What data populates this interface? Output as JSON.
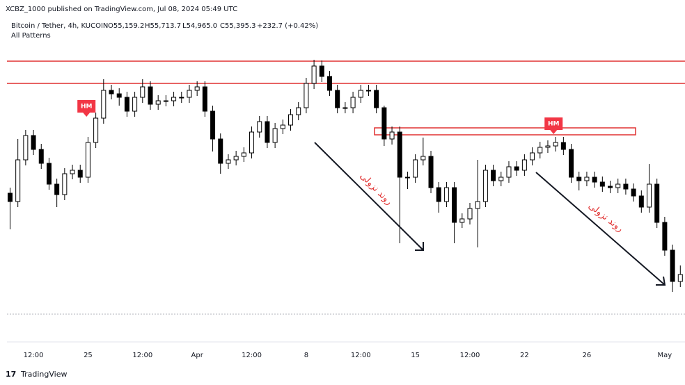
{
  "header": {
    "published": "XCBZ_1000 published on TradingView.com, Jul 08, 2024 05:49 UTC",
    "symbol": "Bitcoin / Tether, 4h, KUCOIN",
    "open": "O55,159.2",
    "high": "H55,713.7",
    "low": "L54,965.0",
    "close": "C55,395.3",
    "change": "+232.7 (+0.42%)",
    "indicator": "All Patterns"
  },
  "footer": {
    "brand": "TradingView"
  },
  "trend_labels": [
    "روند نزولی",
    "روند نزولی"
  ],
  "chart_data": {
    "type": "candlestick",
    "up_color": "#ffffff",
    "down_color": "#000000",
    "wick_color": "#000000",
    "annotations": [
      {
        "text": "HM",
        "x": -0.1,
        "y": 67700
      },
      {
        "text": "HM",
        "x": 29.87,
        "y": 66450
      }
    ],
    "annotation_color": "#f23645",
    "xlim": [
      -5.2,
      38.3
    ],
    "ylim": [
      50800,
      71650
    ],
    "xticks": [
      {
        "value": -3.5,
        "label": "12:00"
      },
      {
        "value": 0,
        "label": "25"
      },
      {
        "value": 3.5,
        "label": "12:00"
      },
      {
        "value": 7,
        "label": "Apr"
      },
      {
        "value": 10.5,
        "label": "12:00"
      },
      {
        "value": 14,
        "label": "8"
      },
      {
        "value": 17.5,
        "label": "12:00"
      },
      {
        "value": 21,
        "label": "15"
      },
      {
        "value": 24.5,
        "label": "12:00"
      },
      {
        "value": 28,
        "label": "22"
      },
      {
        "value": 32,
        "label": "26"
      },
      {
        "value": 37,
        "label": "May"
      }
    ],
    "x": [
      -5,
      -4.5,
      -4,
      -3.5,
      -3,
      -2.5,
      -2,
      -1.5,
      -1,
      -0.5,
      0,
      0.5,
      1,
      1.5,
      2,
      2.5,
      3,
      3.5,
      4,
      4.5,
      5,
      5.5,
      6,
      6.5,
      7,
      7.5,
      8,
      8.5,
      9,
      9.5,
      10,
      10.5,
      11,
      11.5,
      12,
      12.5,
      13,
      13.5,
      14,
      14.5,
      15,
      15.5,
      16,
      16.5,
      17,
      17.5,
      18,
      18.5,
      19,
      19.5,
      20,
      20.5,
      21,
      21.5,
      22,
      22.5,
      23,
      23.5,
      24,
      24.5,
      25,
      25.5,
      26,
      26.5,
      27,
      27.5,
      28,
      28.5,
      29,
      29.5,
      30,
      30.5,
      31,
      31.5,
      32,
      32.5,
      33,
      33.5,
      34,
      34.5,
      35,
      35.5,
      36,
      36.5,
      37,
      37.5,
      38
    ],
    "open": [
      61500,
      60900,
      63900,
      65650,
      64650,
      63650,
      62150,
      61400,
      62900,
      63150,
      62650,
      65150,
      66900,
      68900,
      68650,
      68400,
      67400,
      68400,
      69150,
      67900,
      68150,
      68150,
      68400,
      68400,
      68900,
      69150,
      67400,
      65400,
      63650,
      63900,
      64150,
      64400,
      65900,
      66650,
      65150,
      66150,
      66400,
      67150,
      67650,
      69400,
      70650,
      69900,
      68900,
      67650,
      67650,
      68400,
      68900,
      68900,
      67650,
      65400,
      65900,
      62650,
      62650,
      63900,
      64150,
      61900,
      60900,
      61900,
      59400,
      59650,
      60400,
      60900,
      63150,
      62400,
      62650,
      63400,
      63150,
      63900,
      64400,
      64800,
      64900,
      65150,
      64650,
      62650,
      62400,
      62650,
      62300,
      62000,
      61900,
      62150,
      61800,
      61300,
      60500,
      62150,
      59400,
      57400,
      55150
    ],
    "high": [
      61900,
      65400,
      66050,
      66050,
      65050,
      64050,
      62550,
      63300,
      63550,
      63550,
      65550,
      67300,
      69700,
      69300,
      69050,
      68800,
      68800,
      69700,
      69550,
      68550,
      68550,
      68800,
      68800,
      69300,
      69550,
      69550,
      67800,
      65800,
      64300,
      64550,
      64800,
      66300,
      67050,
      67050,
      66550,
      66800,
      67550,
      68050,
      69800,
      71100,
      71050,
      70300,
      69300,
      68050,
      68800,
      69300,
      69300,
      69300,
      67800,
      66300,
      66300,
      63050,
      64300,
      65500,
      64550,
      62300,
      62300,
      62300,
      60050,
      60800,
      63900,
      63550,
      63550,
      63050,
      63800,
      63800,
      64300,
      64800,
      65200,
      65300,
      65550,
      65550,
      65050,
      63050,
      63050,
      63050,
      62700,
      62400,
      62550,
      62550,
      62200,
      61700,
      63600,
      62550,
      59800,
      57800,
      56300
    ],
    "low": [
      58900,
      60500,
      63500,
      64250,
      63250,
      61750,
      60500,
      61000,
      62500,
      62250,
      62250,
      64750,
      66500,
      68250,
      67800,
      67000,
      67000,
      68000,
      67500,
      67500,
      67750,
      67750,
      68000,
      68000,
      68500,
      67000,
      64500,
      62900,
      63250,
      63500,
      63750,
      64000,
      65500,
      64750,
      64750,
      65750,
      66000,
      66750,
      67250,
      69000,
      69500,
      68500,
      67250,
      67250,
      67250,
      68000,
      68500,
      67250,
      64900,
      65000,
      57900,
      61800,
      62250,
      63500,
      61500,
      60100,
      60500,
      57900,
      59000,
      59250,
      57600,
      60500,
      62000,
      62000,
      62250,
      62750,
      62750,
      63500,
      64000,
      64400,
      64500,
      64250,
      62250,
      61700,
      62000,
      61900,
      61600,
      61500,
      61500,
      61400,
      60900,
      60100,
      60100,
      59000,
      57000,
      54400,
      54750
    ],
    "close": [
      60900,
      63900,
      65650,
      64650,
      63650,
      62150,
      61400,
      62900,
      63150,
      62650,
      65150,
      66900,
      68900,
      68650,
      68400,
      67400,
      68400,
      69150,
      67900,
      68150,
      68150,
      68400,
      68400,
      68900,
      69150,
      67400,
      65400,
      63650,
      63900,
      64150,
      64400,
      65900,
      66650,
      65150,
      66150,
      66400,
      67150,
      67650,
      69400,
      70650,
      69900,
      68900,
      67650,
      67650,
      68400,
      68900,
      68900,
      67650,
      65400,
      65900,
      62650,
      62650,
      63900,
      64150,
      61900,
      60900,
      61900,
      59400,
      59650,
      60400,
      60900,
      63150,
      62400,
      62650,
      63400,
      63150,
      63900,
      64400,
      64800,
      64900,
      65150,
      64650,
      62650,
      62400,
      62650,
      62300,
      62000,
      61900,
      62150,
      61800,
      61300,
      60500,
      62150,
      59400,
      57400,
      55150,
      55650
    ]
  }
}
